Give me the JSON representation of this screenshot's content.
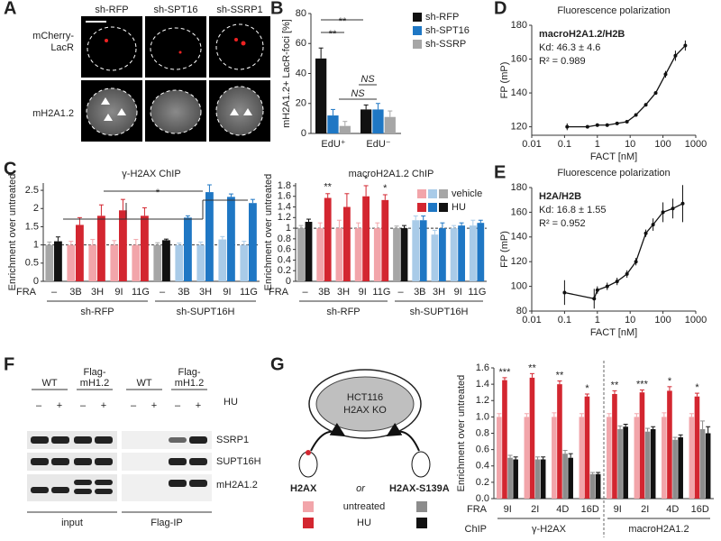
{
  "panel_labels": [
    "A",
    "B",
    "C",
    "D",
    "E",
    "F",
    "G"
  ],
  "microscopy": {
    "columns": [
      "sh-RFP",
      "sh-SPT16",
      "sh-SSRP1"
    ],
    "rows": [
      {
        "lines": [
          "mCherry-",
          "LacR"
        ]
      },
      {
        "lines": [
          "mH2A1.2"
        ]
      }
    ]
  },
  "blot": {
    "groups": [
      {
        "lines": [
          "WT"
        ]
      },
      {
        "lines": [
          "Flag-",
          "mH1.2"
        ]
      }
    ],
    "treatment": "HU",
    "signs": [
      "–",
      "+"
    ],
    "proteins": [
      "SSRP1",
      "SUPT16H",
      "mH2A1.2"
    ],
    "sections": [
      "input",
      "Flag-IP"
    ]
  },
  "diagram": {
    "cell": [
      "HCT116",
      "H2AX KO"
    ],
    "variants": [
      "H2AX",
      "H2AX-S139A"
    ],
    "conjunction": "or",
    "conditions": [
      "untreated",
      "HU"
    ]
  },
  "chart_data": [
    {
      "type": "bar",
      "ylabel": "mH2A1.2+ LacR-foci [%]",
      "categories": [
        "EdU⁺",
        "EdU⁻"
      ],
      "ylim": [
        0,
        80
      ],
      "yticks": [
        0,
        20,
        40,
        60,
        80
      ],
      "series": [
        {
          "name": "sh-RFP",
          "color": "#111111",
          "values": [
            50,
            16
          ],
          "errors": [
            7,
            3
          ]
        },
        {
          "name": "sh-SPT16",
          "color": "#1f77c4",
          "values": [
            12,
            16
          ],
          "errors": [
            4,
            4
          ]
        },
        {
          "name": "sh-SSRP",
          "color": "#a6a6a6",
          "values": [
            5,
            11
          ],
          "errors": [
            3,
            4
          ]
        }
      ],
      "annotations": [
        "**",
        "**",
        "NS",
        "NS"
      ]
    },
    {
      "type": "bar",
      "title": "γ-H2AX ChIP",
      "ylabel": "Enrichment over untreated",
      "xlabel": "FRA",
      "categories": [
        "–",
        "3B",
        "3H",
        "9I",
        "11G",
        "–",
        "3B",
        "3H",
        "9I",
        "11G"
      ],
      "groups": [
        "sh-RFP",
        "sh-SUPT16H"
      ],
      "ylim": [
        0,
        2.7
      ],
      "yticks": [
        0,
        0.5,
        1,
        1.5,
        2,
        2.5
      ],
      "reference_line": 1,
      "series": [
        {
          "name": "vehicle",
          "colors": [
            "#a6a6a6",
            "#f2a5aa",
            "#f2a5aa",
            "#f2a5aa",
            "#f2a5aa",
            "#a6a6a6",
            "#a9cbe8",
            "#a9cbe8",
            "#a9cbe8",
            "#a9cbe8"
          ],
          "values": [
            1.0,
            1.0,
            1.0,
            1.0,
            1.0,
            1.0,
            1.0,
            1.0,
            1.15,
            1.0
          ],
          "errors": [
            0.08,
            0.1,
            0.15,
            0.12,
            0.15,
            0.06,
            0.05,
            0.08,
            0.08,
            0.1
          ]
        },
        {
          "name": "HU",
          "colors": [
            "#111111",
            "#d32630",
            "#d32630",
            "#d32630",
            "#d32630",
            "#111111",
            "#1f77c4",
            "#1f77c4",
            "#1f77c4",
            "#1f77c4"
          ],
          "values": [
            1.1,
            1.55,
            1.8,
            1.95,
            1.8,
            1.13,
            1.75,
            2.45,
            2.32,
            2.15
          ],
          "errors": [
            0.12,
            0.2,
            0.3,
            0.3,
            0.22,
            0.03,
            0.05,
            0.2,
            0.08,
            0.1
          ]
        }
      ],
      "annotations": [
        "*"
      ]
    },
    {
      "type": "bar",
      "title": "macroH2A1.2 ChIP",
      "ylabel": "Enrichment over untreated",
      "xlabel": "FRA",
      "categories": [
        "–",
        "3B",
        "3H",
        "9I",
        "11G",
        "–",
        "3B",
        "3H",
        "9I",
        "11G"
      ],
      "groups": [
        "sh-RFP",
        "sh-SUPT16H"
      ],
      "ylim": [
        0,
        1.85
      ],
      "yticks": [
        0,
        0.2,
        0.4,
        0.6,
        0.8,
        1,
        1.2,
        1.4,
        1.6,
        1.8
      ],
      "reference_line": 1,
      "series": [
        {
          "name": "vehicle",
          "colors": [
            "#a6a6a6",
            "#f2a5aa",
            "#f2a5aa",
            "#f2a5aa",
            "#f2a5aa",
            "#a6a6a6",
            "#a9cbe8",
            "#a9cbe8",
            "#a9cbe8",
            "#a9cbe8"
          ],
          "values": [
            1.0,
            1.0,
            1.0,
            1.0,
            1.0,
            1.0,
            1.15,
            0.88,
            1.0,
            1.05
          ],
          "errors": [
            0.05,
            0.1,
            0.15,
            0.1,
            0.1,
            0.04,
            0.08,
            0.08,
            0.05,
            0.1
          ]
        },
        {
          "name": "HU",
          "colors": [
            "#111111",
            "#d32630",
            "#d32630",
            "#d32630",
            "#d32630",
            "#111111",
            "#1f77c4",
            "#1f77c4",
            "#1f77c4",
            "#1f77c4"
          ],
          "values": [
            1.12,
            1.57,
            1.4,
            1.6,
            1.53,
            1.0,
            1.15,
            1.0,
            1.05,
            1.1
          ],
          "errors": [
            0.05,
            0.08,
            0.25,
            0.2,
            0.1,
            0.05,
            0.08,
            0.1,
            0.05,
            0.05
          ]
        }
      ],
      "annotations": [
        "**",
        "*",
        "*"
      ]
    },
    {
      "type": "scatter",
      "title": "Fluorescence polarization",
      "xlabel": "FACT [nM]",
      "ylabel": "FP (mP)",
      "annotations": [
        "macroH2A1.2/H2B",
        "Kd: 46.3 ± 4.6",
        "R² = 0.989"
      ],
      "log_x": true,
      "x": [
        0.12,
        0.5,
        1,
        2,
        4,
        8,
        15,
        30,
        60,
        120,
        240,
        480
      ],
      "values": [
        120,
        120,
        121,
        121,
        122,
        123,
        127,
        133,
        140,
        151,
        162,
        168
      ],
      "errors": [
        2,
        1,
        1,
        1,
        1,
        1,
        1,
        1,
        1,
        2,
        3,
        3
      ],
      "xlim": [
        0.01,
        1000
      ],
      "xticks": [
        0.01,
        0.1,
        1,
        10,
        100,
        1000
      ],
      "ylim": [
        115,
        180
      ],
      "yticks": [
        120,
        140,
        160,
        180
      ],
      "color": "#111111"
    },
    {
      "type": "scatter",
      "title": "Fluorescence polarization",
      "xlabel": "FACT [nM]",
      "ylabel": "FP (mP)",
      "annotations": [
        "H2A/H2B",
        "Kd: 16.8 ± 1.55",
        "R² = 0.952"
      ],
      "log_x": true,
      "x": [
        0.1,
        0.8,
        1,
        2,
        4,
        8,
        15,
        30,
        50,
        100,
        200,
        400
      ],
      "values": [
        95,
        90,
        97,
        100,
        104,
        110,
        120,
        143,
        150,
        160,
        163,
        167
      ],
      "errors": [
        10,
        8,
        3,
        3,
        3,
        3,
        3,
        3,
        5,
        8,
        8,
        15
      ],
      "xlim": [
        0.01,
        1000
      ],
      "xticks": [
        0.01,
        0.1,
        1,
        10,
        100,
        1000
      ],
      "ylim": [
        80,
        180
      ],
      "yticks": [
        80,
        100,
        120,
        140,
        160,
        180
      ],
      "color": "#111111"
    },
    {
      "type": "bar",
      "ylabel": "Enrichment over untreated",
      "xlabel": "FRA",
      "grouplabel": "ChIP",
      "categories": [
        "9I",
        "2I",
        "4D",
        "16D",
        "9I",
        "2I",
        "4D",
        "16D"
      ],
      "groups": [
        "γ-H2AX",
        "macroH2A1.2"
      ],
      "ylim": [
        0,
        1.6
      ],
      "yticks": [
        {
          "value": 0,
          "label": "0.0"
        },
        0.2,
        0.4,
        0.6,
        0.8,
        {
          "value": 1,
          "label": "1.0"
        },
        1.2,
        1.4,
        1.6
      ],
      "series": [
        {
          "color": "#f2a5aa",
          "values": [
            1.0,
            1.0,
            1.0,
            1.0,
            1.0,
            1.0,
            1.0,
            1.0
          ],
          "errors": [
            0.04,
            0.04,
            0.05,
            0.04,
            0.04,
            0.04,
            0.05,
            0.04
          ]
        },
        {
          "color": "#d32630",
          "values": [
            1.45,
            1.48,
            1.4,
            1.25,
            1.28,
            1.3,
            1.32,
            1.25
          ],
          "errors": [
            0.03,
            0.05,
            0.04,
            0.03,
            0.04,
            0.03,
            0.05,
            0.04
          ]
        },
        {
          "color": "#8c8c8c",
          "values": [
            0.5,
            0.48,
            0.55,
            0.3,
            0.85,
            0.82,
            0.72,
            0.85
          ],
          "errors": [
            0.03,
            0.03,
            0.04,
            0.02,
            0.04,
            0.04,
            0.03,
            0.1
          ]
        },
        {
          "color": "#111111",
          "values": [
            0.48,
            0.48,
            0.5,
            0.3,
            0.88,
            0.85,
            0.75,
            0.8
          ],
          "errors": [
            0.03,
            0.03,
            0.05,
            0.02,
            0.03,
            0.03,
            0.03,
            0.08
          ]
        }
      ],
      "annotations": [
        "***",
        "**",
        "**",
        "*",
        "**",
        "***",
        "*",
        "*"
      ]
    }
  ]
}
